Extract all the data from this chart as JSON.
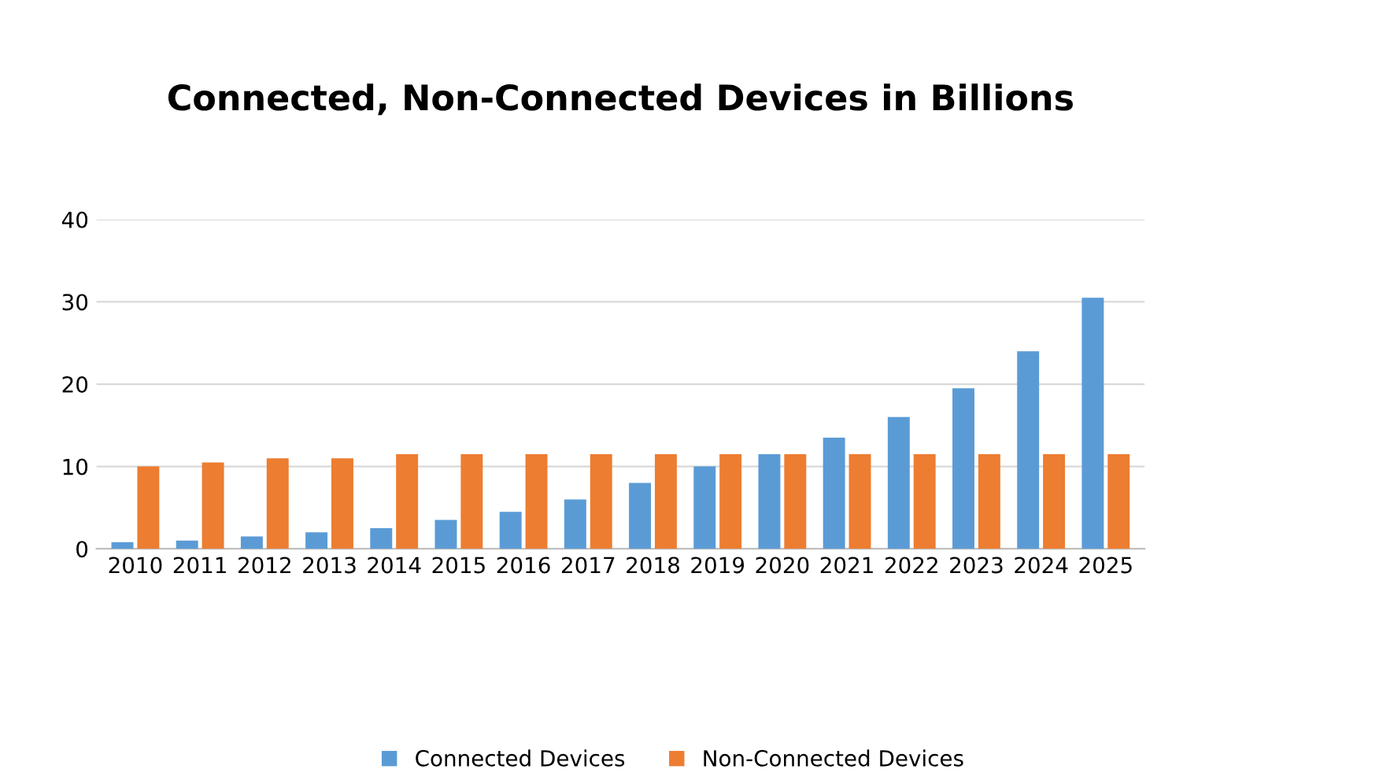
{
  "chart_data": {
    "type": "bar",
    "title": "Connected, Non-Connected Devices in Billions",
    "categories": [
      "2010",
      "2011",
      "2012",
      "2013",
      "2014",
      "2015",
      "2016",
      "2017",
      "2018",
      "2019",
      "2020",
      "2021",
      "2022",
      "2023",
      "2024",
      "2025"
    ],
    "series": [
      {
        "name": "Connected Devices",
        "color": "#5b9bd5",
        "values": [
          0.8,
          1,
          1.5,
          2,
          2.5,
          3.5,
          4.5,
          6,
          8,
          10,
          11.5,
          13.5,
          16,
          19.5,
          24,
          30.5
        ]
      },
      {
        "name": "Non-Connected Devices",
        "color": "#ed7d31",
        "values": [
          10,
          10.5,
          11,
          11,
          11.5,
          11.5,
          11.5,
          11.5,
          11.5,
          11.5,
          11.5,
          11.5,
          11.5,
          11.5,
          11.5,
          11.5
        ]
      }
    ],
    "ylim": [
      0,
      40
    ],
    "yticks": [
      0,
      10,
      20,
      30,
      40
    ],
    "grid": "y",
    "legend": "bottom"
  }
}
